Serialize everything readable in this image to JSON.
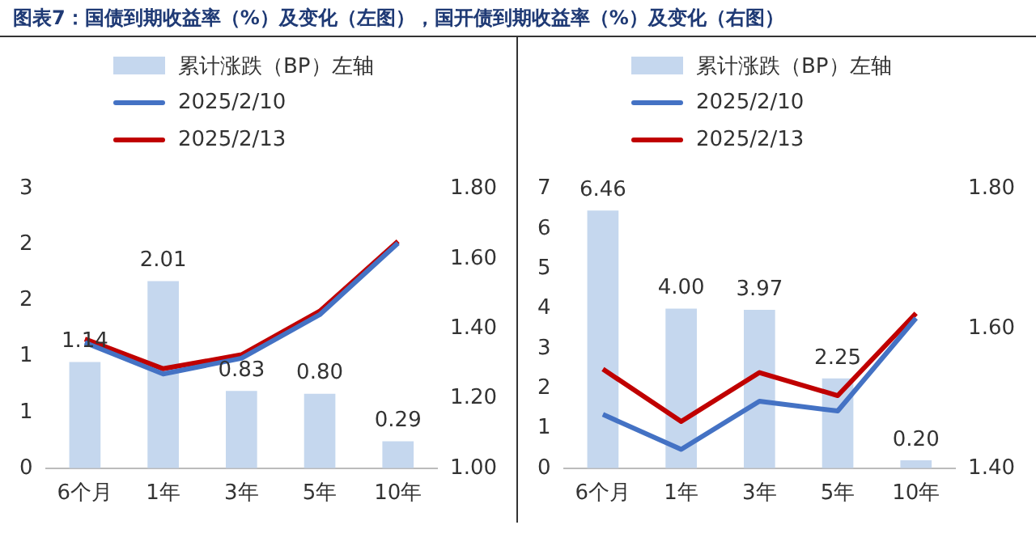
{
  "chart_data": [
    {
      "type": "bar",
      "title": "图表7：国债到期收益率（%）及变化（左图），国开债到期收益率（%）及变化（右图）",
      "categories": [
        "6个月",
        "1年",
        "3年",
        "5年",
        "10年"
      ],
      "series": [
        {
          "name": "累计涨跌（BP）左轴",
          "color": "#c5d7ee",
          "values": [
            1.14,
            2.01,
            0.83,
            0.8,
            0.29
          ],
          "value_labels": [
            "1.14",
            "2.01",
            "0.83",
            "0.80",
            "0.29"
          ]
        },
        {
          "name": "2025/2/10",
          "type": "line",
          "axis": "y2",
          "color": "#4472c4",
          "values": [
            1.36,
            1.27,
            1.315,
            1.44,
            1.645
          ]
        },
        {
          "name": "2025/2/13",
          "type": "line",
          "axis": "y2",
          "color": "#c00000",
          "values": [
            1.37,
            1.285,
            1.325,
            1.45,
            1.65
          ]
        }
      ],
      "ylim": [
        0,
        3
      ],
      "yticks": [
        0,
        {
          "value": 0.6,
          "label": "1"
        },
        {
          "value": 1.2,
          "label": "1"
        },
        {
          "value": 1.8,
          "label": "2"
        },
        {
          "value": 2.4,
          "label": "2"
        },
        3
      ],
      "y2lim": [
        1.0,
        1.8
      ],
      "y2ticks": [
        {
          "value": 1.0,
          "label": "1.00"
        },
        {
          "value": 1.2,
          "label": "1.20"
        },
        {
          "value": 1.4,
          "label": "1.40"
        },
        {
          "value": 1.6,
          "label": "1.60"
        },
        {
          "value": 1.8,
          "label": "1.80"
        }
      ],
      "grid": false,
      "legend": "top",
      "marker": "none"
    },
    {
      "type": "bar",
      "categories": [
        "6个月",
        "1年",
        "3年",
        "5年",
        "10年"
      ],
      "series": [
        {
          "name": "累计涨跌（BP）左轴",
          "color": "#c5d7ee",
          "values": [
            6.46,
            4.0,
            3.97,
            2.25,
            0.2
          ],
          "value_labels": [
            "6.46",
            "4.00",
            "3.97",
            "2.25",
            "0.20"
          ]
        },
        {
          "name": "2025/2/10",
          "type": "line",
          "axis": "y2",
          "color": "#4472c4",
          "values": [
            1.477,
            1.427,
            1.496,
            1.482,
            1.615
          ]
        },
        {
          "name": "2025/2/13",
          "type": "line",
          "axis": "y2",
          "color": "#c00000",
          "values": [
            1.542,
            1.467,
            1.537,
            1.504,
            1.622
          ]
        }
      ],
      "ylim": [
        0,
        7
      ],
      "yticks": [
        0,
        1,
        2,
        3,
        4,
        5,
        6,
        7
      ],
      "y2lim": [
        1.4,
        1.8
      ],
      "y2ticks": [
        {
          "value": 1.4,
          "label": "1.40"
        },
        {
          "value": 1.6,
          "label": "1.60"
        },
        {
          "value": 1.8,
          "label": "1.80"
        }
      ],
      "grid": false,
      "legend": "top",
      "marker": "none"
    }
  ]
}
